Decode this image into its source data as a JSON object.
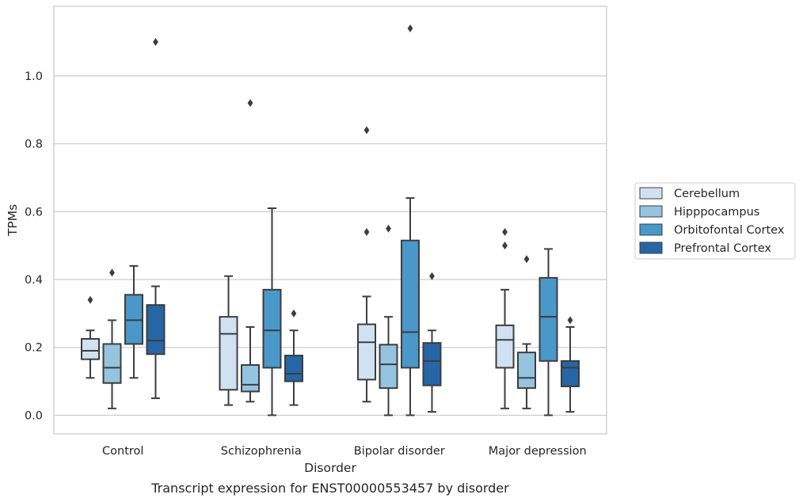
{
  "chart_data": {
    "type": "boxplot",
    "title": "",
    "caption": "Transcript expression for ENST00000553457 by disorder",
    "xlabel": "Disorder",
    "ylabel": "TPMs",
    "ylim": [
      -0.055,
      1.205
    ],
    "yticks": [
      "0.0",
      "0.2",
      "0.4",
      "0.6",
      "0.8",
      "1.0"
    ],
    "categories": [
      "Control",
      "Schizophrenia",
      "Bipolar disorder",
      "Major depression"
    ],
    "grid": "horizontal",
    "legend_position": "right",
    "series": [
      {
        "name": "Cerebellum",
        "color": "#d0e1f2",
        "boxes": [
          {
            "whisker_low": 0.11,
            "q1": 0.165,
            "median": 0.19,
            "q3": 0.225,
            "whisker_high": 0.25,
            "outliers": [
              0.34
            ]
          },
          {
            "whisker_low": 0.03,
            "q1": 0.075,
            "median": 0.24,
            "q3": 0.29,
            "whisker_high": 0.41,
            "outliers": []
          },
          {
            "whisker_low": 0.04,
            "q1": 0.105,
            "median": 0.215,
            "q3": 0.268,
            "whisker_high": 0.35,
            "outliers": [
              0.54,
              0.84
            ]
          },
          {
            "whisker_low": 0.02,
            "q1": 0.14,
            "median": 0.222,
            "q3": 0.265,
            "whisker_high": 0.37,
            "outliers": [
              0.5,
              0.54
            ]
          }
        ]
      },
      {
        "name": "Hipppocampus",
        "color": "#94c4df",
        "boxes": [
          {
            "whisker_low": 0.02,
            "q1": 0.095,
            "median": 0.14,
            "q3": 0.21,
            "whisker_high": 0.28,
            "outliers": [
              0.42
            ]
          },
          {
            "whisker_low": 0.04,
            "q1": 0.07,
            "median": 0.09,
            "q3": 0.148,
            "whisker_high": 0.26,
            "outliers": [
              0.92
            ]
          },
          {
            "whisker_low": 0.0,
            "q1": 0.08,
            "median": 0.15,
            "q3": 0.208,
            "whisker_high": 0.29,
            "outliers": [
              0.55
            ]
          },
          {
            "whisker_low": 0.02,
            "q1": 0.08,
            "median": 0.11,
            "q3": 0.185,
            "whisker_high": 0.21,
            "outliers": [
              0.46
            ]
          }
        ]
      },
      {
        "name": "Orbitofontal Cortex",
        "color": "#4a98c9",
        "boxes": [
          {
            "whisker_low": 0.11,
            "q1": 0.21,
            "median": 0.28,
            "q3": 0.355,
            "whisker_high": 0.44,
            "outliers": []
          },
          {
            "whisker_low": 0.0,
            "q1": 0.14,
            "median": 0.25,
            "q3": 0.37,
            "whisker_high": 0.61,
            "outliers": []
          },
          {
            "whisker_low": 0.0,
            "q1": 0.14,
            "median": 0.245,
            "q3": 0.515,
            "whisker_high": 0.64,
            "outliers": [
              1.14
            ]
          },
          {
            "whisker_low": 0.0,
            "q1": 0.16,
            "median": 0.29,
            "q3": 0.405,
            "whisker_high": 0.49,
            "outliers": []
          }
        ]
      },
      {
        "name": "Prefrontal Cortex",
        "color": "#2666a6",
        "boxes": [
          {
            "whisker_low": 0.05,
            "q1": 0.18,
            "median": 0.22,
            "q3": 0.325,
            "whisker_high": 0.38,
            "outliers": [
              1.1
            ]
          },
          {
            "whisker_low": 0.03,
            "q1": 0.1,
            "median": 0.122,
            "q3": 0.176,
            "whisker_high": 0.25,
            "outliers": [
              0.3
            ]
          },
          {
            "whisker_low": 0.01,
            "q1": 0.088,
            "median": 0.16,
            "q3": 0.213,
            "whisker_high": 0.25,
            "outliers": [
              0.41
            ]
          },
          {
            "whisker_low": 0.01,
            "q1": 0.085,
            "median": 0.14,
            "q3": 0.16,
            "whisker_high": 0.26,
            "outliers": [
              0.28
            ]
          }
        ]
      }
    ]
  }
}
